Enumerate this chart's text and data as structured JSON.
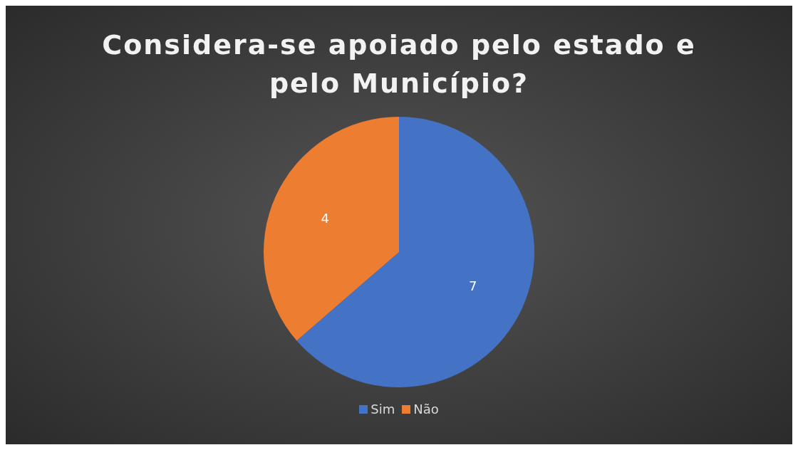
{
  "chart_data": {
    "type": "pie",
    "title": "Considera-se apoiado pelo estado e pelo Município?",
    "categories": [
      "Sim",
      "Não"
    ],
    "values": [
      7,
      4
    ],
    "colors": [
      "#4472c4",
      "#ed7d31"
    ],
    "data_labels": true,
    "legend": "bottom"
  }
}
